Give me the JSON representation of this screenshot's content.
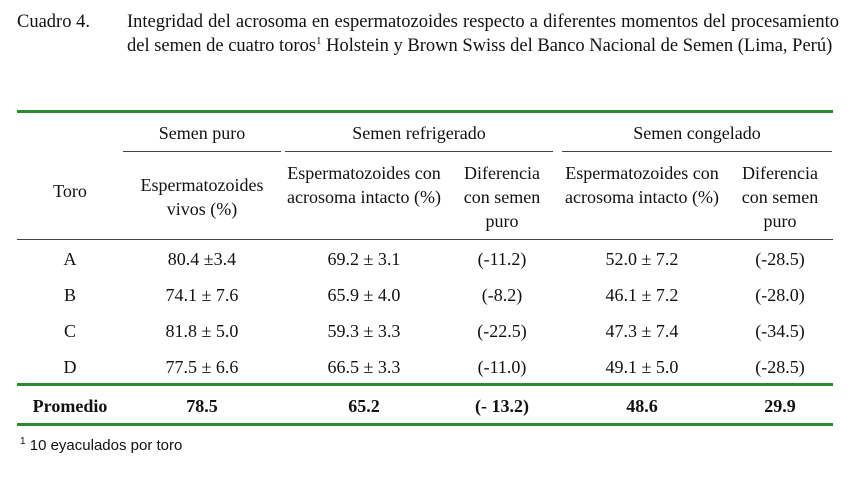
{
  "caption": {
    "label": "Cuadro 4.",
    "text_a": "Integridad del acrosoma en espermatozoides respecto a diferentes momentos del procesamiento del semen de cuatro toros",
    "sup": "1",
    "text_b": " Holstein y Brown Swiss del Banco Nacional de Semen (Lima, Perú)"
  },
  "table": {
    "group_headers": [
      "Semen puro",
      "Semen refrigerado",
      "Semen congelado"
    ],
    "col_headers": [
      "Toro",
      "Espermatozoides vivos (%)",
      "Espermatozoides con acrosoma intacto (%)",
      "Diferencia con semen puro",
      "Espermatozoides con acrosoma intacto (%)",
      "Diferencia con semen puro"
    ],
    "rows": [
      [
        "A",
        "80.4 ±3.4",
        "69.2 ± 3.1",
        "(-11.2)",
        "52.0 ± 7.2",
        "(-28.5)"
      ],
      [
        "B",
        "74.1 ± 7.6",
        "65.9 ± 4.0",
        "(-8.2)",
        "46.1 ± 7.2",
        "(-28.0)"
      ],
      [
        "C",
        "81.8 ± 5.0",
        "59.3 ± 3.3",
        "(-22.5)",
        "47.3 ± 7.4",
        "(-34.5)"
      ],
      [
        "D",
        "77.5 ± 6.6",
        "66.5 ± 3.3",
        "(-11.0)",
        "49.1 ± 5.0",
        "(-28.5)"
      ]
    ],
    "total": [
      "Promedio",
      "78.5",
      "65.2",
      "(- 13.2)",
      "48.6",
      "29.9"
    ]
  },
  "footnote": {
    "sup": "1",
    "text": " 10 eyaculados por toro"
  },
  "colors": {
    "rule": "#2a8b2f"
  }
}
